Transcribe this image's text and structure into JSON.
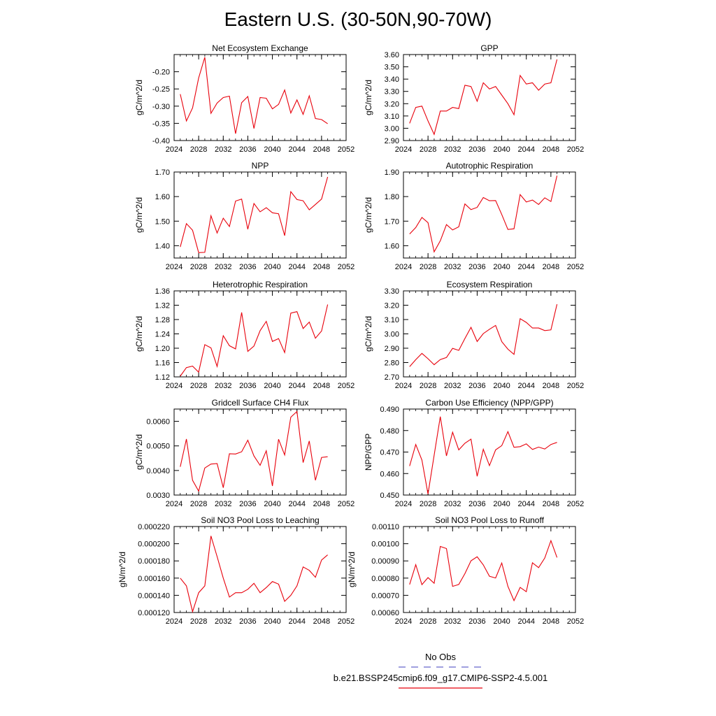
{
  "title": "Eastern U.S. (30-50N,90-70W)",
  "colors": {
    "obs": "#6666cc",
    "model": "#e8000b",
    "axis": "#000000"
  },
  "legend": {
    "obs_label": "No Obs",
    "model_label": "b.e21.BSSP245cmip6.f09_g17.CMIP6-SSP2-4.5.001"
  },
  "chart_data": [
    {
      "type": "line",
      "title": "Net Ecosystem Exchange",
      "xlabel": "",
      "ylabel": "gC/m^2/d",
      "xlim": [
        2024,
        2052
      ],
      "ylim": [
        -0.4,
        -0.15
      ],
      "xticks": [
        "2024",
        "2028",
        "2032",
        "2036",
        "2040",
        "2044",
        "2048",
        "2052"
      ],
      "yticks": [
        "-0.40",
        "-0.35",
        "-0.30",
        "-0.25",
        "-0.20"
      ],
      "x": [
        2025,
        2026,
        2027,
        2028,
        2029,
        2030,
        2031,
        2032,
        2033,
        2034,
        2035,
        2036,
        2037,
        2038,
        2039,
        2040,
        2041,
        2042,
        2043,
        2044,
        2045,
        2046,
        2047,
        2048,
        2049
      ],
      "series": [
        {
          "values": [
            -0.265,
            -0.343,
            -0.305,
            -0.218,
            -0.158,
            -0.321,
            -0.291,
            -0.275,
            -0.271,
            -0.38,
            -0.29,
            -0.272,
            -0.365,
            -0.275,
            -0.277,
            -0.308,
            -0.295,
            -0.253,
            -0.32,
            -0.282,
            -0.324,
            -0.27,
            -0.336,
            -0.339,
            -0.351
          ]
        }
      ]
    },
    {
      "type": "line",
      "title": "GPP",
      "xlabel": "",
      "ylabel": "gC/m^2/d",
      "xlim": [
        2024,
        2052
      ],
      "ylim": [
        2.9,
        3.6
      ],
      "xticks": [
        "2024",
        "2028",
        "2032",
        "2036",
        "2040",
        "2044",
        "2048",
        "2052"
      ],
      "yticks": [
        "2.90",
        "3.00",
        "3.10",
        "3.20",
        "3.30",
        "3.40",
        "3.50",
        "3.60"
      ],
      "x": [
        2025,
        2026,
        2027,
        2028,
        2029,
        2030,
        2031,
        2032,
        2033,
        2034,
        2035,
        2036,
        2037,
        2038,
        2039,
        2040,
        2041,
        2042,
        2043,
        2044,
        2045,
        2046,
        2047,
        2048,
        2049
      ],
      "series": [
        {
          "values": [
            3.04,
            3.17,
            3.18,
            3.06,
            2.95,
            3.14,
            3.14,
            3.17,
            3.16,
            3.35,
            3.34,
            3.22,
            3.37,
            3.32,
            3.34,
            3.27,
            3.2,
            3.11,
            3.43,
            3.36,
            3.37,
            3.31,
            3.36,
            3.37,
            3.56
          ]
        }
      ]
    },
    {
      "type": "line",
      "title": "NPP",
      "xlabel": "",
      "ylabel": "gC/m^2/d",
      "xlim": [
        2024,
        2052
      ],
      "ylim": [
        1.35,
        1.7
      ],
      "xticks": [
        "2024",
        "2028",
        "2032",
        "2036",
        "2040",
        "2044",
        "2048",
        "2052"
      ],
      "yticks": [
        "1.40",
        "1.50",
        "1.60",
        "1.70"
      ],
      "x": [
        2025,
        2026,
        2027,
        2028,
        2029,
        2030,
        2031,
        2032,
        2033,
        2034,
        2035,
        2036,
        2037,
        2038,
        2039,
        2040,
        2041,
        2042,
        2043,
        2044,
        2045,
        2046,
        2047,
        2048,
        2049
      ],
      "series": [
        {
          "values": [
            1.395,
            1.49,
            1.463,
            1.372,
            1.373,
            1.522,
            1.452,
            1.512,
            1.478,
            1.582,
            1.59,
            1.467,
            1.572,
            1.538,
            1.555,
            1.534,
            1.53,
            1.441,
            1.62,
            1.588,
            1.583,
            1.546,
            1.568,
            1.59,
            1.68
          ]
        }
      ]
    },
    {
      "type": "line",
      "title": "Autotrophic Respiration",
      "xlabel": "",
      "ylabel": "gC/m^2/d",
      "xlim": [
        2024,
        2052
      ],
      "ylim": [
        1.55,
        1.9
      ],
      "xticks": [
        "2024",
        "2028",
        "2032",
        "2036",
        "2040",
        "2044",
        "2048",
        "2052"
      ],
      "yticks": [
        "1.60",
        "1.70",
        "1.80",
        "1.90"
      ],
      "x": [
        2025,
        2026,
        2027,
        2028,
        2029,
        2030,
        2031,
        2032,
        2033,
        2034,
        2035,
        2036,
        2037,
        2038,
        2039,
        2040,
        2041,
        2042,
        2043,
        2044,
        2045,
        2046,
        2047,
        2048,
        2049
      ],
      "series": [
        {
          "values": [
            1.648,
            1.674,
            1.715,
            1.694,
            1.575,
            1.62,
            1.686,
            1.664,
            1.677,
            1.77,
            1.747,
            1.756,
            1.796,
            1.783,
            1.784,
            1.727,
            1.666,
            1.669,
            1.808,
            1.778,
            1.786,
            1.768,
            1.795,
            1.78,
            1.885
          ]
        }
      ]
    },
    {
      "type": "line",
      "title": "Heterotrophic Respiration",
      "xlabel": "",
      "ylabel": "gC/m^2/d",
      "xlim": [
        2024,
        2052
      ],
      "ylim": [
        1.12,
        1.36
      ],
      "xticks": [
        "2024",
        "2028",
        "2032",
        "2036",
        "2040",
        "2044",
        "2048",
        "2052"
      ],
      "yticks": [
        "1.12",
        "1.16",
        "1.20",
        "1.24",
        "1.28",
        "1.32",
        "1.36"
      ],
      "x": [
        2025,
        2026,
        2027,
        2028,
        2029,
        2030,
        2031,
        2032,
        2033,
        2034,
        2035,
        2036,
        2037,
        2038,
        2039,
        2040,
        2041,
        2042,
        2043,
        2044,
        2045,
        2046,
        2047,
        2048,
        2049
      ],
      "series": [
        {
          "values": [
            1.122,
            1.146,
            1.15,
            1.133,
            1.21,
            1.201,
            1.149,
            1.235,
            1.207,
            1.198,
            1.3,
            1.191,
            1.206,
            1.249,
            1.275,
            1.219,
            1.227,
            1.188,
            1.298,
            1.302,
            1.255,
            1.273,
            1.228,
            1.248,
            1.322
          ]
        }
      ]
    },
    {
      "type": "line",
      "title": "Ecosystem Respiration",
      "xlabel": "",
      "ylabel": "gC/m^2/d",
      "xlim": [
        2024,
        2052
      ],
      "ylim": [
        2.7,
        3.3
      ],
      "xticks": [
        "2024",
        "2028",
        "2032",
        "2036",
        "2040",
        "2044",
        "2048",
        "2052"
      ],
      "yticks": [
        "2.70",
        "2.80",
        "2.90",
        "3.00",
        "3.10",
        "3.20",
        "3.30"
      ],
      "x": [
        2025,
        2026,
        2027,
        2028,
        2029,
        2030,
        2031,
        2032,
        2033,
        2034,
        2035,
        2036,
        2037,
        2038,
        2039,
        2040,
        2041,
        2042,
        2043,
        2044,
        2045,
        2046,
        2047,
        2048,
        2049
      ],
      "series": [
        {
          "values": [
            2.771,
            2.82,
            2.864,
            2.827,
            2.785,
            2.821,
            2.835,
            2.899,
            2.885,
            2.968,
            3.046,
            2.947,
            3.002,
            3.032,
            3.059,
            2.946,
            2.893,
            2.857,
            3.106,
            3.08,
            3.041,
            3.041,
            3.023,
            3.028,
            3.207
          ]
        }
      ]
    },
    {
      "type": "line",
      "title": "Gridcell Surface CH4 Flux",
      "xlabel": "",
      "ylabel": "gC/m^2/d",
      "xlim": [
        2024,
        2052
      ],
      "ylim": [
        0.003,
        0.0065
      ],
      "xticks": [
        "2024",
        "2028",
        "2032",
        "2036",
        "2040",
        "2044",
        "2048",
        "2052"
      ],
      "yticks": [
        "0.0030",
        "0.0040",
        "0.0050",
        "0.0060"
      ],
      "x": [
        2025,
        2026,
        2027,
        2028,
        2029,
        2030,
        2031,
        2032,
        2033,
        2034,
        2035,
        2036,
        2037,
        2038,
        2039,
        2040,
        2041,
        2042,
        2043,
        2044,
        2045,
        2046,
        2047,
        2048,
        2049
      ],
      "series": [
        {
          "values": [
            0.00415,
            0.00528,
            0.0036,
            0.00316,
            0.0041,
            0.00426,
            0.00428,
            0.0033,
            0.00468,
            0.00467,
            0.00476,
            0.00523,
            0.00459,
            0.00421,
            0.0048,
            0.00337,
            0.00527,
            0.00463,
            0.00617,
            0.0064,
            0.00432,
            0.0052,
            0.0036,
            0.00453,
            0.00456
          ]
        }
      ]
    },
    {
      "type": "line",
      "title": "Carbon Use Efficiency (NPP/GPP)",
      "xlabel": "",
      "ylabel": "NPP/GPP",
      "xlim": [
        2024,
        2052
      ],
      "ylim": [
        0.45,
        0.49
      ],
      "xticks": [
        "2024",
        "2028",
        "2032",
        "2036",
        "2040",
        "2044",
        "2048",
        "2052"
      ],
      "yticks": [
        "0.450",
        "0.460",
        "0.470",
        "0.480",
        "0.490"
      ],
      "x": [
        2025,
        2026,
        2027,
        2028,
        2029,
        2030,
        2031,
        2032,
        2033,
        2034,
        2035,
        2036,
        2037,
        2038,
        2039,
        2040,
        2041,
        2042,
        2043,
        2044,
        2045,
        2046,
        2047,
        2048,
        2049
      ],
      "series": [
        {
          "values": [
            0.4635,
            0.4735,
            0.4663,
            0.4505,
            0.4685,
            0.4865,
            0.4682,
            0.4792,
            0.471,
            0.4741,
            0.476,
            0.4587,
            0.4713,
            0.4637,
            0.471,
            0.473,
            0.4795,
            0.4722,
            0.4725,
            0.4738,
            0.4712,
            0.4723,
            0.4714,
            0.4735,
            0.4745
          ]
        }
      ]
    },
    {
      "type": "line",
      "title": "Soil NO3 Pool Loss to Leaching",
      "xlabel": "",
      "ylabel": "gN/m^2/d",
      "xlim": [
        2024,
        2052
      ],
      "ylim": [
        0.00012,
        0.00022
      ],
      "xticks": [
        "2024",
        "2028",
        "2032",
        "2036",
        "2040",
        "2044",
        "2048",
        "2052"
      ],
      "yticks": [
        "0.000120",
        "0.000140",
        "0.000160",
        "0.000180",
        "0.000200",
        "0.000220"
      ],
      "x": [
        2025,
        2026,
        2027,
        2028,
        2029,
        2030,
        2031,
        2032,
        2033,
        2034,
        2035,
        2036,
        2037,
        2038,
        2039,
        2040,
        2041,
        2042,
        2043,
        2044,
        2045,
        2046,
        2047,
        2048,
        2049
      ],
      "series": [
        {
          "values": [
            0.00016,
            0.000151,
            0.000121,
            0.000143,
            0.000151,
            0.000209,
            0.000185,
            0.00016,
            0.000138,
            0.000143,
            0.000143,
            0.000147,
            0.000154,
            0.000143,
            0.000149,
            0.000156,
            0.000153,
            0.000133,
            0.00014,
            0.000151,
            0.000173,
            0.000169,
            0.000161,
            0.000181,
            0.000187
          ]
        }
      ]
    },
    {
      "type": "line",
      "title": "Soil NO3 Pool Loss to Runoff",
      "xlabel": "",
      "ylabel": "gN/m^2/d",
      "xlim": [
        2024,
        2052
      ],
      "ylim": [
        0.0006,
        0.0011
      ],
      "xticks": [
        "2024",
        "2028",
        "2032",
        "2036",
        "2040",
        "2044",
        "2048",
        "2052"
      ],
      "yticks": [
        "0.00060",
        "0.00070",
        "0.00080",
        "0.00090",
        "0.00100",
        "0.00110"
      ],
      "x": [
        2025,
        2026,
        2027,
        2028,
        2029,
        2030,
        2031,
        2032,
        2033,
        2034,
        2035,
        2036,
        2037,
        2038,
        2039,
        2040,
        2041,
        2042,
        2043,
        2044,
        2045,
        2046,
        2047,
        2048,
        2049
      ],
      "series": [
        {
          "values": [
            0.000763,
            0.000878,
            0.000762,
            0.000803,
            0.00077,
            0.000984,
            0.000972,
            0.000752,
            0.000763,
            0.000826,
            0.000901,
            0.000924,
            0.000877,
            0.000811,
            0.000801,
            0.000888,
            0.000752,
            0.000669,
            0.000746,
            0.000721,
            0.000889,
            0.000861,
            0.000917,
            0.001018,
            0.00092
          ]
        }
      ]
    }
  ]
}
